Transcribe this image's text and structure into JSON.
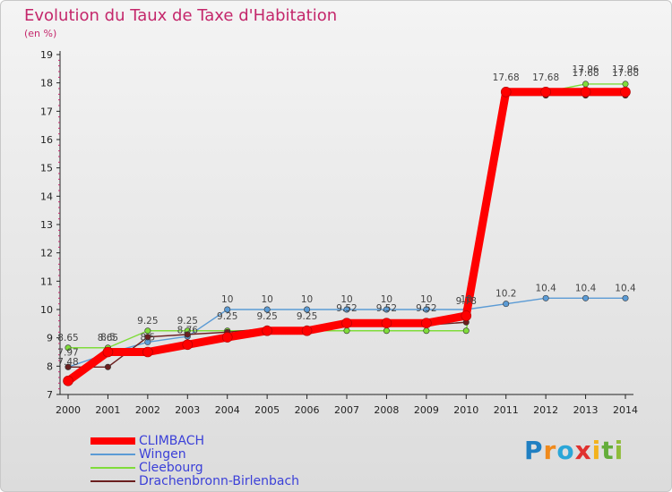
{
  "title": "Evolution du Taux de Taxe d'Habitation",
  "subtitle": "(en %)",
  "brand": {
    "letters": [
      "P",
      "r",
      "o",
      "x",
      "i",
      "t",
      "i"
    ]
  },
  "chart_data": {
    "type": "line",
    "title": "Evolution du Taux de Taxe d'Habitation",
    "ylabel": "(en %)",
    "xlabel": "",
    "ylim": [
      7,
      19
    ],
    "yticks": [
      7,
      8,
      9,
      10,
      11,
      12,
      13,
      14,
      15,
      16,
      17,
      18,
      19
    ],
    "categories": [
      "2000",
      "2001",
      "2002",
      "2003",
      "2004",
      "2005",
      "2006",
      "2007",
      "2008",
      "2009",
      "2010",
      "2011",
      "2012",
      "2013",
      "2014"
    ],
    "grid": false,
    "legend_position": "bottom-left",
    "series": [
      {
        "name": "CLIMBACH",
        "color": "#ff0000",
        "style": "thick",
        "values": [
          7.48,
          8.5,
          8.5,
          8.76,
          9.02,
          9.25,
          9.25,
          9.52,
          9.52,
          9.52,
          9.78,
          17.68,
          17.68,
          17.68,
          17.68
        ]
      },
      {
        "name": "Wingen",
        "color": "#5b9bd5",
        "style": "thin",
        "values": [
          7.97,
          8.45,
          8.85,
          9.05,
          10,
          10,
          10,
          10,
          10,
          10,
          10,
          10.2,
          10.4,
          10.4,
          10.4
        ]
      },
      {
        "name": "Cleebourg",
        "color": "#7fdc3a",
        "style": "thin",
        "values": [
          8.65,
          8.65,
          9.25,
          9.25,
          9.25,
          9.25,
          9.25,
          9.25,
          9.25,
          9.25,
          9.25,
          17.68,
          17.68,
          17.96,
          17.96
        ]
      },
      {
        "name": "Drachenbronn-Birlenbach",
        "color": "#6b1f1f",
        "style": "thin",
        "values": [
          7.97,
          7.97,
          9.03,
          9.12,
          9.2,
          9.33,
          9.33,
          9.45,
          9.45,
          9.45,
          9.55,
          17.56,
          17.56,
          17.56,
          17.56
        ]
      }
    ],
    "data_labels": [
      {
        "category": "2000",
        "text": "8.65"
      },
      {
        "category": "2000",
        "text": "7.97"
      },
      {
        "category": "2000",
        "text": "7.48"
      },
      {
        "category": "2001",
        "text": "8.65"
      },
      {
        "category": "2001",
        "text": "8.5"
      },
      {
        "category": "2002",
        "text": "9.25"
      },
      {
        "category": "2002",
        "text": "8.5"
      },
      {
        "category": "2003",
        "text": "9.25"
      },
      {
        "category": "2003",
        "text": "8.76"
      },
      {
        "category": "2004",
        "text": "10"
      },
      {
        "category": "2004",
        "text": "9.25"
      },
      {
        "category": "2005",
        "text": "10"
      },
      {
        "category": "2005",
        "text": "9.25"
      },
      {
        "category": "2006",
        "text": "10"
      },
      {
        "category": "2006",
        "text": "9.25"
      },
      {
        "category": "2007",
        "text": "10"
      },
      {
        "category": "2007",
        "text": "9.52"
      },
      {
        "category": "2008",
        "text": "10"
      },
      {
        "category": "2008",
        "text": "9.52"
      },
      {
        "category": "2009",
        "text": "10"
      },
      {
        "category": "2009",
        "text": "9.52"
      },
      {
        "category": "2010",
        "text": "10"
      },
      {
        "category": "2010",
        "text": "9.78"
      },
      {
        "category": "2011",
        "text": "10.2"
      },
      {
        "category": "2011",
        "text": "17.68"
      },
      {
        "category": "2012",
        "text": "10.4"
      },
      {
        "category": "2012",
        "text": "17.68"
      },
      {
        "category": "2013",
        "text": "10.4"
      },
      {
        "category": "2013",
        "text": "17.96"
      },
      {
        "category": "2013",
        "text": "17.68"
      },
      {
        "category": "2014",
        "text": "10.4"
      },
      {
        "category": "2014",
        "text": "17.96"
      },
      {
        "category": "2014",
        "text": "17.68"
      }
    ]
  }
}
